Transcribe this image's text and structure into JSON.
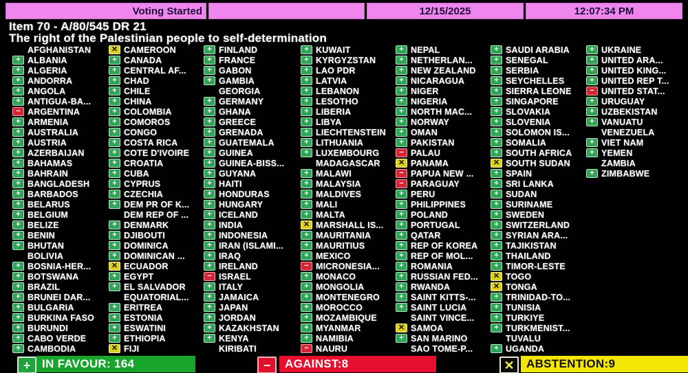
{
  "header": {
    "status": "Voting Started",
    "date": "12/15/2025",
    "time": "12:07:34 PM"
  },
  "title": {
    "line1": "Item 70 - A/80/545 DR 21",
    "line2": "The right of the Palestinian people to self-determination"
  },
  "colors": {
    "topbar_pink": "#ee86ee",
    "vote_for_green": "#2fa457",
    "vote_against_red": "#d82535",
    "vote_abstain_yellow": "#ddd01a",
    "summary_green": "#17a62b",
    "summary_red": "#e80f2e",
    "summary_yellow": "#f2e604"
  },
  "summary": {
    "in_favour": "IN FAVOUR: 164",
    "against": "AGAINST:8",
    "abstention": "ABSTENTION:9",
    "in_favour_icon": "+",
    "against_icon": "−",
    "abstention_icon": "✕"
  },
  "votes": {
    "column_lefts": [
      18,
      158,
      296,
      437,
      575,
      713,
      852
    ],
    "columns": [
      [
        {
          "name": "AFGHANISTAN",
          "vote": "none"
        },
        {
          "name": "ALBANIA",
          "vote": "for"
        },
        {
          "name": "ALGERIA",
          "vote": "for"
        },
        {
          "name": "ANDORRA",
          "vote": "for"
        },
        {
          "name": "ANGOLA",
          "vote": "for"
        },
        {
          "name": "ANTIGUA-BA...",
          "vote": "for"
        },
        {
          "name": "ARGENTINA",
          "vote": "against"
        },
        {
          "name": "ARMENIA",
          "vote": "for"
        },
        {
          "name": "AUSTRALIA",
          "vote": "for"
        },
        {
          "name": "AUSTRIA",
          "vote": "for"
        },
        {
          "name": "AZERBAIJAN",
          "vote": "for"
        },
        {
          "name": "BAHAMAS",
          "vote": "for"
        },
        {
          "name": "BAHRAIN",
          "vote": "for"
        },
        {
          "name": "BANGLADESH",
          "vote": "for"
        },
        {
          "name": "BARBADOS",
          "vote": "for"
        },
        {
          "name": "BELARUS",
          "vote": "for"
        },
        {
          "name": "BELGIUM",
          "vote": "for"
        },
        {
          "name": "BELIZE",
          "vote": "for"
        },
        {
          "name": "BENIN",
          "vote": "for"
        },
        {
          "name": "BHUTAN",
          "vote": "for"
        },
        {
          "name": "BOLIVIA",
          "vote": "none"
        },
        {
          "name": "BOSNIA-HER...",
          "vote": "for"
        },
        {
          "name": "BOTSWANA",
          "vote": "for"
        },
        {
          "name": "BRAZIL",
          "vote": "for"
        },
        {
          "name": "BRUNEI DAR...",
          "vote": "for"
        },
        {
          "name": "BULGARIA",
          "vote": "for"
        },
        {
          "name": "BURKINA FASO",
          "vote": "for"
        },
        {
          "name": "BURUNDI",
          "vote": "for"
        },
        {
          "name": "CABO VERDE",
          "vote": "for"
        },
        {
          "name": "CAMBODIA",
          "vote": "for"
        }
      ],
      [
        {
          "name": "CAMEROON",
          "vote": "abstain"
        },
        {
          "name": "CANADA",
          "vote": "for"
        },
        {
          "name": "CENTRAL AF...",
          "vote": "for"
        },
        {
          "name": "CHAD",
          "vote": "for"
        },
        {
          "name": "CHILE",
          "vote": "for"
        },
        {
          "name": "CHINA",
          "vote": "for"
        },
        {
          "name": "COLOMBIA",
          "vote": "for"
        },
        {
          "name": "COMOROS",
          "vote": "for"
        },
        {
          "name": "CONGO",
          "vote": "for"
        },
        {
          "name": "COSTA RICA",
          "vote": "for"
        },
        {
          "name": "COTE D'IVOIRE",
          "vote": "for"
        },
        {
          "name": "CROATIA",
          "vote": "for"
        },
        {
          "name": "CUBA",
          "vote": "for"
        },
        {
          "name": "CYPRUS",
          "vote": "for"
        },
        {
          "name": "CZECHIA",
          "vote": "for"
        },
        {
          "name": "DEM PR OF K...",
          "vote": "for"
        },
        {
          "name": "DEM REP OF ...",
          "vote": "none"
        },
        {
          "name": "DENMARK",
          "vote": "for"
        },
        {
          "name": "DJIBOUTI",
          "vote": "for"
        },
        {
          "name": "DOMINICA",
          "vote": "for"
        },
        {
          "name": "DOMINICAN ...",
          "vote": "for"
        },
        {
          "name": "ECUADOR",
          "vote": "abstain"
        },
        {
          "name": "EGYPT",
          "vote": "for"
        },
        {
          "name": "EL SALVADOR",
          "vote": "for"
        },
        {
          "name": "EQUATORIAL...",
          "vote": "none"
        },
        {
          "name": "ERITREA",
          "vote": "for"
        },
        {
          "name": "ESTONIA",
          "vote": "for"
        },
        {
          "name": "ESWATINI",
          "vote": "for"
        },
        {
          "name": "ETHIOPIA",
          "vote": "for"
        },
        {
          "name": "FIJI",
          "vote": "abstain"
        }
      ],
      [
        {
          "name": "FINLAND",
          "vote": "for"
        },
        {
          "name": "FRANCE",
          "vote": "for"
        },
        {
          "name": "GABON",
          "vote": "for"
        },
        {
          "name": "GAMBIA",
          "vote": "for"
        },
        {
          "name": "GEORGIA",
          "vote": "none"
        },
        {
          "name": "GERMANY",
          "vote": "for"
        },
        {
          "name": "GHANA",
          "vote": "for"
        },
        {
          "name": "GREECE",
          "vote": "for"
        },
        {
          "name": "GRENADA",
          "vote": "for"
        },
        {
          "name": "GUATEMALA",
          "vote": "for"
        },
        {
          "name": "GUINEA",
          "vote": "for"
        },
        {
          "name": "GUINEA-BISS...",
          "vote": "for"
        },
        {
          "name": "GUYANA",
          "vote": "for"
        },
        {
          "name": "HAITI",
          "vote": "for"
        },
        {
          "name": "HONDURAS",
          "vote": "for"
        },
        {
          "name": "HUNGARY",
          "vote": "for"
        },
        {
          "name": "ICELAND",
          "vote": "for"
        },
        {
          "name": "INDIA",
          "vote": "for"
        },
        {
          "name": "INDONESIA",
          "vote": "for"
        },
        {
          "name": "IRAN (ISLAMI...",
          "vote": "for"
        },
        {
          "name": "IRAQ",
          "vote": "for"
        },
        {
          "name": "IRELAND",
          "vote": "for"
        },
        {
          "name": "ISRAEL",
          "vote": "against"
        },
        {
          "name": "ITALY",
          "vote": "for"
        },
        {
          "name": "JAMAICA",
          "vote": "for"
        },
        {
          "name": "JAPAN",
          "vote": "for"
        },
        {
          "name": "JORDAN",
          "vote": "for"
        },
        {
          "name": "KAZAKHSTAN",
          "vote": "for"
        },
        {
          "name": "KENYA",
          "vote": "for"
        },
        {
          "name": "KIRIBATI",
          "vote": "none"
        }
      ],
      [
        {
          "name": "KUWAIT",
          "vote": "for"
        },
        {
          "name": "KYRGYZSTAN",
          "vote": "for"
        },
        {
          "name": "LAO PDR",
          "vote": "for"
        },
        {
          "name": "LATVIA",
          "vote": "for"
        },
        {
          "name": "LEBANON",
          "vote": "for"
        },
        {
          "name": "LESOTHO",
          "vote": "for"
        },
        {
          "name": "LIBERIA",
          "vote": "for"
        },
        {
          "name": "LIBYA",
          "vote": "for"
        },
        {
          "name": "LIECHTENSTEIN",
          "vote": "for"
        },
        {
          "name": "LITHUANIA",
          "vote": "for"
        },
        {
          "name": "LUXEMBOURG",
          "vote": "for"
        },
        {
          "name": "MADAGASCAR",
          "vote": "none"
        },
        {
          "name": "MALAWI",
          "vote": "for"
        },
        {
          "name": "MALAYSIA",
          "vote": "for"
        },
        {
          "name": "MALDIVES",
          "vote": "for"
        },
        {
          "name": "MALI",
          "vote": "for"
        },
        {
          "name": "MALTA",
          "vote": "for"
        },
        {
          "name": "MARSHALL IS...",
          "vote": "abstain"
        },
        {
          "name": "MAURITANIA",
          "vote": "for"
        },
        {
          "name": "MAURITIUS",
          "vote": "for"
        },
        {
          "name": "MEXICO",
          "vote": "for"
        },
        {
          "name": "MICRONESIA...",
          "vote": "against"
        },
        {
          "name": "MONACO",
          "vote": "for"
        },
        {
          "name": "MONGOLIA",
          "vote": "for"
        },
        {
          "name": "MONTENEGRO",
          "vote": "for"
        },
        {
          "name": "MOROCCO",
          "vote": "for"
        },
        {
          "name": "MOZAMBIQUE",
          "vote": "for"
        },
        {
          "name": "MYANMAR",
          "vote": "for"
        },
        {
          "name": "NAMIBIA",
          "vote": "for"
        },
        {
          "name": "NAURU",
          "vote": "against"
        }
      ],
      [
        {
          "name": "NEPAL",
          "vote": "for"
        },
        {
          "name": "NETHERLAN...",
          "vote": "for"
        },
        {
          "name": "NEW ZEALAND",
          "vote": "for"
        },
        {
          "name": "NICARAGUA",
          "vote": "for"
        },
        {
          "name": "NIGER",
          "vote": "for"
        },
        {
          "name": "NIGERIA",
          "vote": "for"
        },
        {
          "name": "NORTH MAC...",
          "vote": "for"
        },
        {
          "name": "NORWAY",
          "vote": "for"
        },
        {
          "name": "OMAN",
          "vote": "for"
        },
        {
          "name": "PAKISTAN",
          "vote": "for"
        },
        {
          "name": "PALAU",
          "vote": "against"
        },
        {
          "name": "PANAMA",
          "vote": "abstain"
        },
        {
          "name": "PAPUA NEW ...",
          "vote": "against"
        },
        {
          "name": "PARAGUAY",
          "vote": "against"
        },
        {
          "name": "PERU",
          "vote": "for"
        },
        {
          "name": "PHILIPPINES",
          "vote": "for"
        },
        {
          "name": "POLAND",
          "vote": "for"
        },
        {
          "name": "PORTUGAL",
          "vote": "for"
        },
        {
          "name": "QATAR",
          "vote": "for"
        },
        {
          "name": "REP OF KOREA",
          "vote": "for"
        },
        {
          "name": "REP OF MOL...",
          "vote": "for"
        },
        {
          "name": "ROMANIA",
          "vote": "for"
        },
        {
          "name": "RUSSIAN FED...",
          "vote": "for"
        },
        {
          "name": "RWANDA",
          "vote": "for"
        },
        {
          "name": "SAINT KITTS-...",
          "vote": "for"
        },
        {
          "name": "SAINT LUCIA",
          "vote": "for"
        },
        {
          "name": "SAINT VINCE...",
          "vote": "none"
        },
        {
          "name": "SAMOA",
          "vote": "abstain"
        },
        {
          "name": "SAN MARINO",
          "vote": "for"
        },
        {
          "name": "SAO TOME-P...",
          "vote": "none"
        }
      ],
      [
        {
          "name": "SAUDI ARABIA",
          "vote": "for"
        },
        {
          "name": "SENEGAL",
          "vote": "for"
        },
        {
          "name": "SERBIA",
          "vote": "for"
        },
        {
          "name": "SEYCHELLES",
          "vote": "for"
        },
        {
          "name": "SIERRA LEONE",
          "vote": "for"
        },
        {
          "name": "SINGAPORE",
          "vote": "for"
        },
        {
          "name": "SLOVAKIA",
          "vote": "for"
        },
        {
          "name": "SLOVENIA",
          "vote": "for"
        },
        {
          "name": "SOLOMON IS...",
          "vote": "for"
        },
        {
          "name": "SOMALIA",
          "vote": "for"
        },
        {
          "name": "SOUTH AFRICA",
          "vote": "for"
        },
        {
          "name": "SOUTH SUDAN",
          "vote": "abstain"
        },
        {
          "name": "SPAIN",
          "vote": "for"
        },
        {
          "name": "SRI LANKA",
          "vote": "for"
        },
        {
          "name": "SUDAN",
          "vote": "for"
        },
        {
          "name": "SURINAME",
          "vote": "for"
        },
        {
          "name": "SWEDEN",
          "vote": "for"
        },
        {
          "name": "SWITZERLAND",
          "vote": "for"
        },
        {
          "name": "SYRIAN ARA...",
          "vote": "for"
        },
        {
          "name": "TAJIKISTAN",
          "vote": "for"
        },
        {
          "name": "THAILAND",
          "vote": "for"
        },
        {
          "name": "TIMOR-LESTE",
          "vote": "for"
        },
        {
          "name": "TOGO",
          "vote": "abstain"
        },
        {
          "name": "TONGA",
          "vote": "abstain"
        },
        {
          "name": "TRINIDAD-TO...",
          "vote": "for"
        },
        {
          "name": "TUNISIA",
          "vote": "for"
        },
        {
          "name": "TURKIYE",
          "vote": "for"
        },
        {
          "name": "TURKMENIST...",
          "vote": "for"
        },
        {
          "name": "TUVALU",
          "vote": "none"
        },
        {
          "name": "UGANDA",
          "vote": "for"
        }
      ],
      [
        {
          "name": "UKRAINE",
          "vote": "for"
        },
        {
          "name": "UNITED ARA...",
          "vote": "for"
        },
        {
          "name": "UNITED KING...",
          "vote": "for"
        },
        {
          "name": "UNITED REP T...",
          "vote": "for"
        },
        {
          "name": "UNITED STAT...",
          "vote": "against"
        },
        {
          "name": "URUGUAY",
          "vote": "for"
        },
        {
          "name": "UZBEKISTAN",
          "vote": "for"
        },
        {
          "name": "VANUATU",
          "vote": "for"
        },
        {
          "name": "VENEZUELA",
          "vote": "none"
        },
        {
          "name": "VIET NAM",
          "vote": "for"
        },
        {
          "name": "YEMEN",
          "vote": "for"
        },
        {
          "name": "ZAMBIA",
          "vote": "none"
        },
        {
          "name": "ZIMBABWE",
          "vote": "for"
        }
      ]
    ]
  }
}
